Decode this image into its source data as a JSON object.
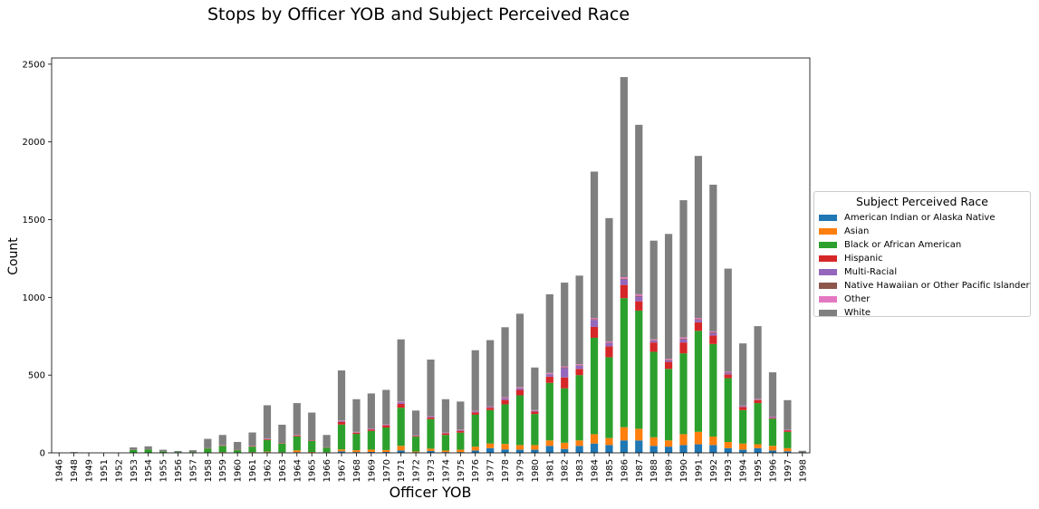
{
  "chart_data": {
    "type": "bar",
    "stacked": true,
    "title": "Stops by Officer YOB and Subject Perceived Race",
    "xlabel": "Officer YOB",
    "ylabel": "Count",
    "ylim": [
      0,
      2540
    ],
    "yticks": [
      0,
      500,
      1000,
      1500,
      2000,
      2500
    ],
    "grid": false,
    "legend_placement": "center-right, outside plot",
    "legend_title": "Subject Perceived Race",
    "categories": [
      "1946",
      "1948",
      "1949",
      "1951",
      "1952",
      "1953",
      "1954",
      "1955",
      "1956",
      "1957",
      "1958",
      "1959",
      "1960",
      "1961",
      "1962",
      "1963",
      "1964",
      "1965",
      "1966",
      "1967",
      "1968",
      "1969",
      "1970",
      "1971",
      "1972",
      "1973",
      "1974",
      "1975",
      "1976",
      "1977",
      "1978",
      "1979",
      "1980",
      "1981",
      "1982",
      "1983",
      "1984",
      "1985",
      "1986",
      "1987",
      "1988",
      "1989",
      "1990",
      "1991",
      "1992",
      "1993",
      "1994",
      "1995",
      "1996",
      "1997",
      "1998"
    ],
    "series": [
      {
        "name": "American Indian or Alaska Native",
        "color": "#1f77b4",
        "values": [
          0,
          0,
          0,
          0,
          0,
          0,
          0,
          0,
          0,
          0,
          2,
          3,
          1,
          3,
          4,
          2,
          4,
          3,
          2,
          10,
          5,
          6,
          6,
          15,
          4,
          12,
          5,
          5,
          15,
          30,
          22,
          20,
          20,
          45,
          25,
          45,
          60,
          50,
          80,
          80,
          45,
          40,
          50,
          55,
          50,
          30,
          20,
          30,
          15,
          10,
          0
        ]
      },
      {
        "name": "Asian",
        "color": "#ff7f0e",
        "values": [
          0,
          0,
          0,
          0,
          0,
          0,
          0,
          0,
          0,
          0,
          1,
          2,
          1,
          2,
          4,
          2,
          12,
          3,
          2,
          12,
          12,
          15,
          12,
          30,
          5,
          15,
          10,
          15,
          25,
          30,
          35,
          30,
          30,
          35,
          40,
          35,
          60,
          45,
          85,
          75,
          55,
          40,
          70,
          80,
          55,
          40,
          40,
          25,
          30,
          20,
          0
        ]
      },
      {
        "name": "Black or African American",
        "color": "#2ca02c",
        "values": [
          0,
          3,
          0,
          0,
          0,
          18,
          22,
          8,
          5,
          5,
          25,
          40,
          15,
          35,
          75,
          55,
          90,
          70,
          30,
          160,
          105,
          120,
          145,
          245,
          95,
          190,
          100,
          110,
          205,
          215,
          255,
          320,
          200,
          370,
          350,
          420,
          620,
          520,
          830,
          760,
          550,
          460,
          520,
          650,
          595,
          410,
          215,
          265,
          175,
          105,
          3
        ]
      },
      {
        "name": "Hispanic",
        "color": "#d62728",
        "values": [
          0,
          0,
          0,
          0,
          0,
          1,
          1,
          0,
          0,
          0,
          2,
          3,
          2,
          3,
          5,
          3,
          6,
          3,
          2,
          18,
          8,
          10,
          14,
          25,
          5,
          10,
          10,
          12,
          15,
          15,
          28,
          35,
          15,
          40,
          70,
          40,
          70,
          70,
          85,
          60,
          60,
          45,
          70,
          55,
          55,
          25,
          20,
          20,
          5,
          10,
          0
        ]
      },
      {
        "name": "Multi-Racial",
        "color": "#9467bd",
        "values": [
          0,
          0,
          0,
          0,
          0,
          0,
          0,
          0,
          0,
          0,
          0,
          1,
          0,
          1,
          2,
          1,
          2,
          1,
          1,
          5,
          2,
          3,
          3,
          10,
          2,
          5,
          2,
          4,
          5,
          5,
          10,
          10,
          5,
          15,
          60,
          20,
          45,
          20,
          35,
          30,
          10,
          10,
          20,
          15,
          15,
          10,
          5,
          3,
          5,
          3,
          0
        ]
      },
      {
        "name": "Native Hawaiian or Other Pacific Islander",
        "color": "#8c564b",
        "values": [
          0,
          0,
          0,
          0,
          0,
          0,
          0,
          0,
          0,
          0,
          0,
          0,
          0,
          1,
          1,
          0,
          1,
          0,
          0,
          1,
          1,
          1,
          1,
          2,
          1,
          1,
          1,
          1,
          2,
          2,
          3,
          3,
          2,
          3,
          5,
          4,
          5,
          4,
          5,
          5,
          4,
          4,
          5,
          5,
          5,
          3,
          2,
          2,
          1,
          1,
          0
        ]
      },
      {
        "name": "Other",
        "color": "#e377c2",
        "values": [
          0,
          0,
          0,
          0,
          0,
          0,
          0,
          0,
          0,
          0,
          0,
          1,
          0,
          1,
          1,
          0,
          1,
          0,
          0,
          2,
          2,
          2,
          2,
          3,
          1,
          3,
          2,
          2,
          3,
          3,
          5,
          5,
          3,
          6,
          6,
          6,
          8,
          8,
          10,
          10,
          6,
          6,
          8,
          8,
          6,
          4,
          2,
          2,
          2,
          1,
          0
        ]
      },
      {
        "name": "White",
        "color": "#7f7f7f",
        "values": [
          0,
          2,
          0,
          0,
          0,
          16,
          19,
          12,
          7,
          12,
          60,
          65,
          51,
          85,
          214,
          118,
          204,
          179,
          78,
          322,
          210,
          225,
          222,
          400,
          159,
          364,
          215,
          181,
          390,
          425,
          450,
          472,
          274,
          506,
          539,
          570,
          941,
          793,
          1287,
          1090,
          635,
          803,
          882,
          1042,
          944,
          663,
          400,
          468,
          285,
          189,
          10
        ]
      }
    ]
  }
}
